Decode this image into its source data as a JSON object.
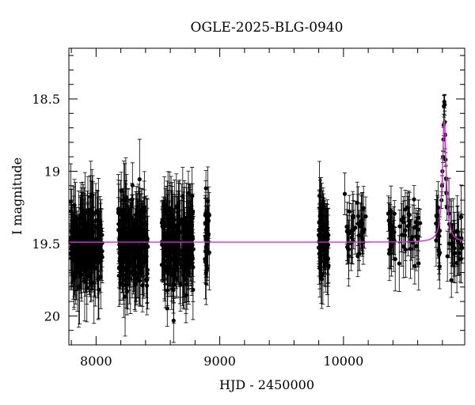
{
  "chart_data": {
    "type": "scatter",
    "title": "OGLE-2025-BLG-0940",
    "xlabel": "HJD - 2450000",
    "ylabel": "I magnitude",
    "xlim": [
      7780,
      10980
    ],
    "ylim": [
      18.15,
      20.2
    ],
    "y_inverted": true,
    "x_ticks": [
      8000,
      9000,
      10000
    ],
    "y_ticks": [
      18.5,
      19,
      19.5,
      20
    ],
    "x_minor_step": 200,
    "y_minor_step": 0.1,
    "grid": false,
    "series": [
      {
        "kind": "observations",
        "marker": "filled-circle-with-errorbars",
        "color": "#000000",
        "seasons": [
          {
            "start": 7790,
            "end": 8050,
            "n": 230,
            "mean": 19.5,
            "sd": 0.14,
            "err": 0.2
          },
          {
            "start": 8180,
            "end": 8420,
            "n": 230,
            "mean": 19.5,
            "sd": 0.14,
            "err": 0.2
          },
          {
            "start": 8530,
            "end": 8790,
            "n": 230,
            "mean": 19.5,
            "sd": 0.14,
            "err": 0.2
          },
          {
            "start": 8880,
            "end": 8920,
            "n": 30,
            "mean": 19.5,
            "sd": 0.14,
            "err": 0.2
          },
          {
            "start": 9800,
            "end": 9880,
            "n": 70,
            "mean": 19.5,
            "sd": 0.14,
            "err": 0.2
          },
          {
            "start": 10000,
            "end": 10180,
            "n": 40,
            "mean": 19.42,
            "sd": 0.1,
            "err": 0.16
          },
          {
            "start": 10360,
            "end": 10620,
            "n": 55,
            "mean": 19.42,
            "sd": 0.1,
            "err": 0.16
          },
          {
            "start": 10740,
            "end": 10780,
            "n": 15,
            "mean": 19.4,
            "sd": 0.1,
            "err": 0.16
          },
          {
            "start": 10840,
            "end": 10960,
            "n": 30,
            "mean": 19.45,
            "sd": 0.12,
            "err": 0.18
          }
        ],
        "peak_points": [
          {
            "x": 10812,
            "y": 18.55
          },
          {
            "x": 10815,
            "y": 18.52
          },
          {
            "x": 10818,
            "y": 18.54
          },
          {
            "x": 10821,
            "y": 18.75
          },
          {
            "x": 10808,
            "y": 18.78
          },
          {
            "x": 10805,
            "y": 18.9
          },
          {
            "x": 10825,
            "y": 18.92
          },
          {
            "x": 10800,
            "y": 19.0
          },
          {
            "x": 10829,
            "y": 19.05
          },
          {
            "x": 10797,
            "y": 19.1
          },
          {
            "x": 10832,
            "y": 19.15
          },
          {
            "x": 10810,
            "y": 18.68
          },
          {
            "x": 10819,
            "y": 18.66
          },
          {
            "x": 10835,
            "y": 19.25
          },
          {
            "x": 10792,
            "y": 19.2
          }
        ]
      },
      {
        "kind": "model",
        "color": "#cc33cc",
        "baseline": 19.49,
        "peak_time": 10815,
        "peak_mag": 18.65,
        "width": 18
      }
    ]
  }
}
